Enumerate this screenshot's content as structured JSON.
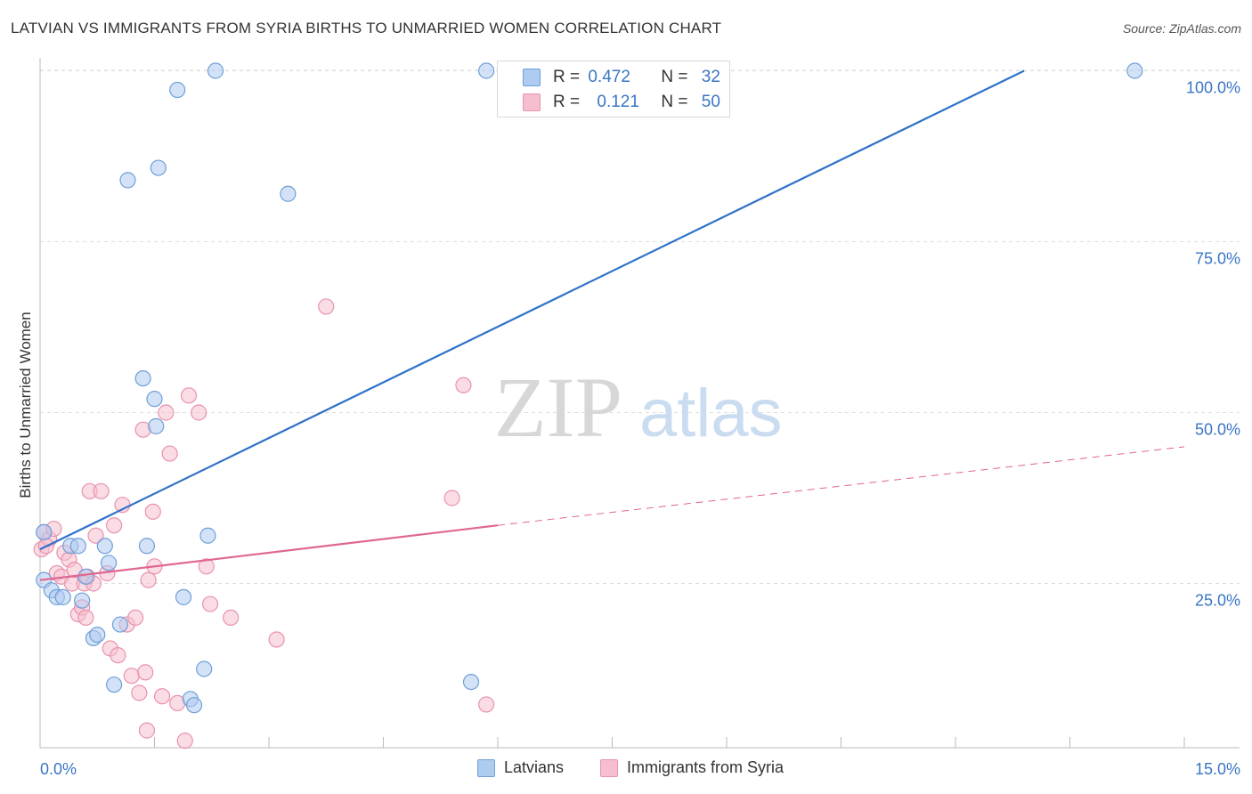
{
  "header": {
    "title": "LATVIAN VS IMMIGRANTS FROM SYRIA BIRTHS TO UNMARRIED WOMEN CORRELATION CHART",
    "source": "Source: ZipAtlas.com"
  },
  "watermark": {
    "zip": "ZIP",
    "atlas": "atlas"
  },
  "legend": {
    "r_label": "R =",
    "n_label": "N =",
    "latvians": {
      "r": "0.472",
      "n": "32",
      "name": "Latvians"
    },
    "syria": {
      "r": "0.121",
      "n": "50",
      "name": "Immigrants from Syria"
    }
  },
  "colors": {
    "blue_fill": "#aecbf0",
    "blue_stroke": "#6f9fd8",
    "blue_line": "#2f72c8",
    "pink_fill": "#f6bfd0",
    "pink_stroke": "#e893ad",
    "pink_line": "#e0668f",
    "axis_label": "#3a75c4",
    "grid": "#dddddd"
  },
  "chart_data": {
    "type": "scatter",
    "title": "LATVIAN VS IMMIGRANTS FROM SYRIA BIRTHS TO UNMARRIED WOMEN CORRELATION CHART",
    "ylabel": "Births to Unmarried Women",
    "xlabel": "",
    "xlim": [
      0,
      15
    ],
    "ylim": [
      0,
      102
    ],
    "x_tick_labels": [
      {
        "value": 0,
        "label": "0.0%"
      },
      {
        "value": 15,
        "label": "15.0%"
      }
    ],
    "y_tick_labels": [
      {
        "value": 25,
        "label": "25.0%"
      },
      {
        "value": 50,
        "label": "50.0%"
      },
      {
        "value": 75,
        "label": "75.0%"
      },
      {
        "value": 100,
        "label": "100.0%"
      }
    ],
    "series": [
      {
        "name": "Latvians",
        "color": "blue",
        "points": [
          [
            0.05,
            32.5
          ],
          [
            0.05,
            25.5
          ],
          [
            0.15,
            24.0
          ],
          [
            0.22,
            23.0
          ],
          [
            0.3,
            23.0
          ],
          [
            0.4,
            30.5
          ],
          [
            0.5,
            30.5
          ],
          [
            0.55,
            22.5
          ],
          [
            0.6,
            26.0
          ],
          [
            0.7,
            17.0
          ],
          [
            0.75,
            17.5
          ],
          [
            0.85,
            30.5
          ],
          [
            0.9,
            28.0
          ],
          [
            0.97,
            10.2
          ],
          [
            1.05,
            19.0
          ],
          [
            1.15,
            84.0
          ],
          [
            1.35,
            55.0
          ],
          [
            1.4,
            30.5
          ],
          [
            1.5,
            52.0
          ],
          [
            1.52,
            48.0
          ],
          [
            1.55,
            85.8
          ],
          [
            1.8,
            97.2
          ],
          [
            1.88,
            23.0
          ],
          [
            1.97,
            8.1
          ],
          [
            2.02,
            7.2
          ],
          [
            2.15,
            12.5
          ],
          [
            2.2,
            32.0
          ],
          [
            2.3,
            100.0
          ],
          [
            3.25,
            82.0
          ],
          [
            5.65,
            10.6
          ],
          [
            5.85,
            100.0
          ],
          [
            14.35,
            100.0
          ]
        ],
        "trend": {
          "x": [
            0.0,
            12.9
          ],
          "y": [
            30.0,
            100.0
          ],
          "style": "solid"
        }
      },
      {
        "name": "Immigrants from Syria",
        "color": "pink",
        "points": [
          [
            0.02,
            30.0
          ],
          [
            0.05,
            32.5
          ],
          [
            0.12,
            31.5
          ],
          [
            0.18,
            33.0
          ],
          [
            0.22,
            26.5
          ],
          [
            0.28,
            26.0
          ],
          [
            0.32,
            29.5
          ],
          [
            0.38,
            28.5
          ],
          [
            0.42,
            25.0
          ],
          [
            0.45,
            27.0
          ],
          [
            0.5,
            20.5
          ],
          [
            0.55,
            21.5
          ],
          [
            0.58,
            25.0
          ],
          [
            0.62,
            26.0
          ],
          [
            0.65,
            38.5
          ],
          [
            0.7,
            25.0
          ],
          [
            0.73,
            32.0
          ],
          [
            0.8,
            38.5
          ],
          [
            0.88,
            26.5
          ],
          [
            0.92,
            15.5
          ],
          [
            0.97,
            33.5
          ],
          [
            1.02,
            14.5
          ],
          [
            1.08,
            36.5
          ],
          [
            1.14,
            19.0
          ],
          [
            1.2,
            11.5
          ],
          [
            1.25,
            20.0
          ],
          [
            1.3,
            9.0
          ],
          [
            1.35,
            47.5
          ],
          [
            1.38,
            12.0
          ],
          [
            1.4,
            3.5
          ],
          [
            1.42,
            25.5
          ],
          [
            1.48,
            35.5
          ],
          [
            1.5,
            27.5
          ],
          [
            1.6,
            8.5
          ],
          [
            1.65,
            50.0
          ],
          [
            1.7,
            44.0
          ],
          [
            1.8,
            7.5
          ],
          [
            1.9,
            2.0
          ],
          [
            1.95,
            52.5
          ],
          [
            2.08,
            50.0
          ],
          [
            2.18,
            27.5
          ],
          [
            2.23,
            22.0
          ],
          [
            2.5,
            20.0
          ],
          [
            3.1,
            16.8
          ],
          [
            3.75,
            65.5
          ],
          [
            5.4,
            37.5
          ],
          [
            5.55,
            54.0
          ],
          [
            5.85,
            7.3
          ],
          [
            0.08,
            30.5
          ],
          [
            0.6,
            20.0
          ]
        ],
        "trend": {
          "x": [
            0.0,
            6.0
          ],
          "y": [
            25.5,
            33.5
          ],
          "style": "solid",
          "extension": {
            "x": [
              6.0,
              15.0
            ],
            "y": [
              33.5,
              45.0
            ],
            "style": "dashed"
          }
        }
      }
    ]
  }
}
